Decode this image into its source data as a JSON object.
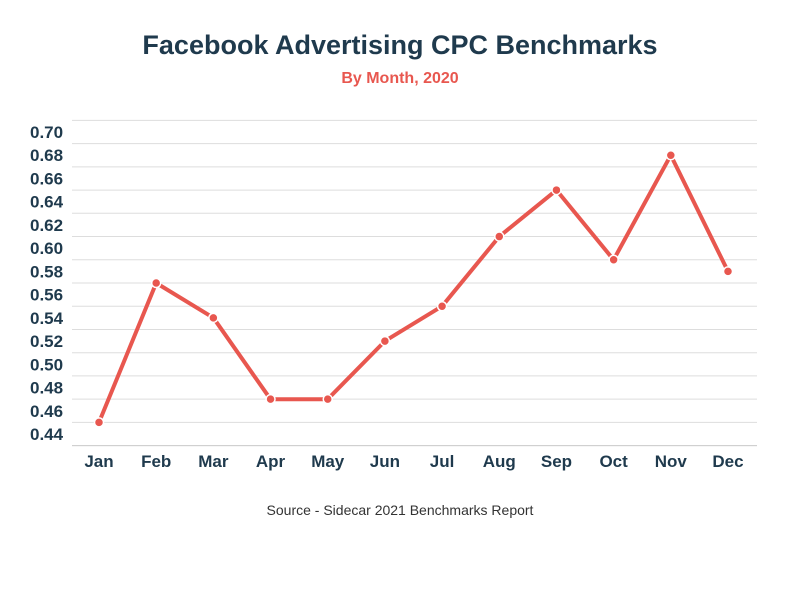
{
  "chart_data": {
    "type": "line",
    "title": "Facebook Advertising CPC Benchmarks",
    "subtitle": "By Month, 2020",
    "source": "Source - Sidecar 2021 Benchmarks Report",
    "xlabel": "",
    "ylabel": "",
    "categories": [
      "Jan",
      "Feb",
      "Mar",
      "Apr",
      "May",
      "Jun",
      "Jul",
      "Aug",
      "Sep",
      "Oct",
      "Nov",
      "Dec"
    ],
    "series": [
      {
        "values": [
          0.45,
          0.57,
          0.54,
          0.47,
          0.47,
          0.52,
          0.55,
          0.61,
          0.65,
          0.59,
          0.68,
          0.58
        ]
      }
    ],
    "ylim": [
      0.43,
      0.7
    ],
    "yticks": [
      "0.70",
      "0.68",
      "0.66",
      "0.64",
      "0.62",
      "0.60",
      "0.58",
      "0.56",
      "0.54",
      "0.52",
      "0.50",
      "0.48",
      "0.46",
      "0.44"
    ],
    "grid": true,
    "legend": "none",
    "colors": {
      "line": "#e8574f",
      "title": "#1f3a4d",
      "subtitle": "#e8574f",
      "grid": "#dddddd"
    }
  }
}
